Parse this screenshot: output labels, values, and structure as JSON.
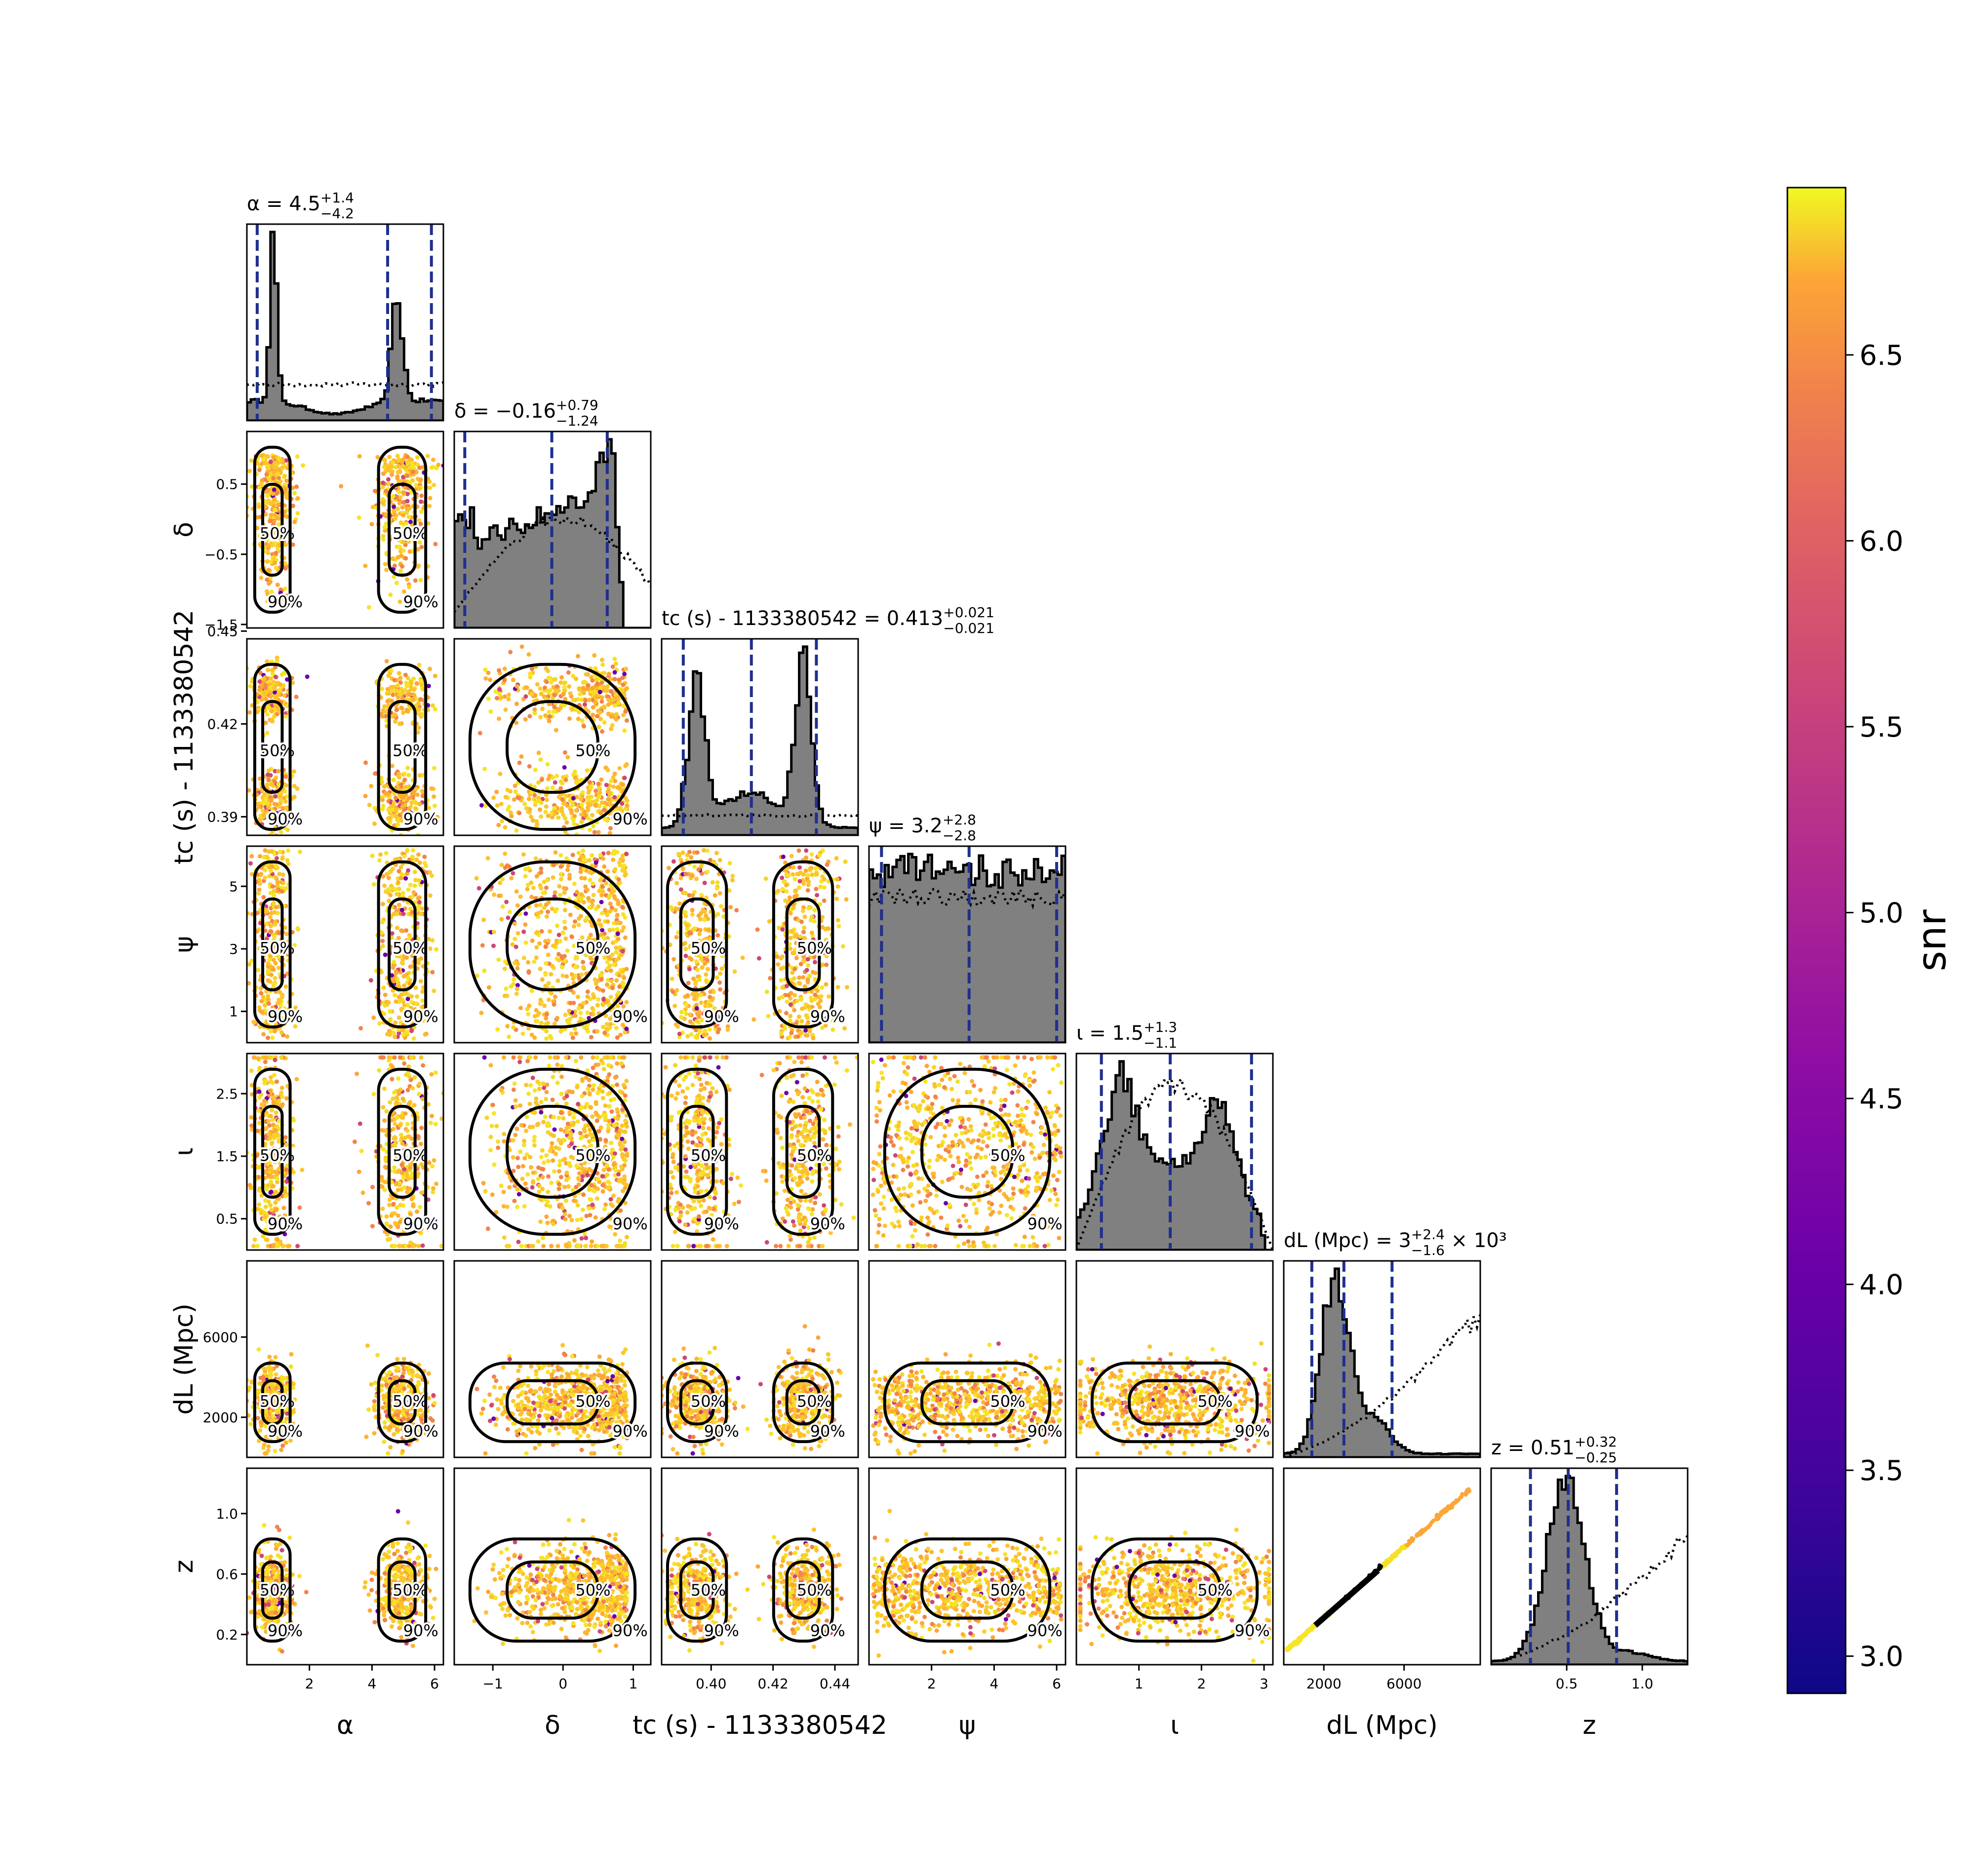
{
  "chart_data": {
    "type": "corner",
    "parameters": [
      {
        "key": "alpha",
        "label": "α",
        "lo": 0,
        "hi": 6.283,
        "ticks": [
          2,
          4,
          6
        ],
        "tick_labels": [
          "2",
          "4",
          "6"
        ],
        "title": "α = 4.5",
        "median": 4.5,
        "title_sup": "+1.4",
        "title_sub": "−4.2",
        "quantiles": [
          0.33,
          4.5,
          5.9
        ],
        "shape": "alpha"
      },
      {
        "key": "delta",
        "label": "δ",
        "lo": -1.55,
        "hi": 1.25,
        "ticks": [
          -1,
          0,
          1
        ],
        "tick_labels": [
          "−1",
          "0",
          "1"
        ],
        "title": "δ = −0.16",
        "median": -0.16,
        "title_sup": "+0.79",
        "title_sub": "−1.24",
        "quantiles": [
          -1.4,
          -0.16,
          0.63
        ],
        "shape": "delta"
      },
      {
        "key": "tc",
        "label": "tc (s) - 1133380542",
        "lo": 0.384,
        "hi": 0.4475,
        "ticks": [
          0.4,
          0.42,
          0.44
        ],
        "tick_labels": [
          "0.40",
          "0.42",
          "0.44"
        ],
        "title": "tc (s) - 1133380542 = 0.413",
        "median": 0.413,
        "title_sup": "+0.021",
        "title_sub": "−0.021",
        "quantiles": [
          0.391,
          0.413,
          0.434
        ],
        "shape": "tc"
      },
      {
        "key": "psi",
        "label": "ψ",
        "lo": 0,
        "hi": 6.283,
        "ticks": [
          2,
          4,
          6
        ],
        "tick_labels": [
          "2",
          "4",
          "6"
        ],
        "title": "ψ = 3.2",
        "median": 3.2,
        "title_sup": "+2.8",
        "title_sub": "−2.8",
        "quantiles": [
          0.4,
          3.2,
          6.0
        ],
        "shape": "psi"
      },
      {
        "key": "iota",
        "label": "ι",
        "lo": 0,
        "hi": 3.1416,
        "ticks": [
          1,
          2,
          3
        ],
        "tick_labels": [
          "1",
          "2",
          "3"
        ],
        "title": "ι = 1.5",
        "median": 1.5,
        "title_sup": "+1.3",
        "title_sub": "−1.1",
        "quantiles": [
          0.4,
          1.5,
          2.8
        ],
        "shape": "iota"
      },
      {
        "key": "dl",
        "label": "dL (Mpc)",
        "lo": 0,
        "hi": 9800,
        "ticks": [
          2000,
          6000
        ],
        "tick_labels": [
          "2000",
          "6000"
        ],
        "title": "dL (Mpc) = 3",
        "median": 3000,
        "title_sup": "+2.4",
        "title_sub": "−1.6",
        "title_suffix": " × 10³",
        "quantiles": [
          1400,
          3000,
          5400
        ],
        "shape": "dl"
      },
      {
        "key": "z",
        "label": "z",
        "lo": 0,
        "hi": 1.3,
        "ticks": [
          0.5,
          1.0
        ],
        "tick_labels": [
          "0.5",
          "1.0"
        ],
        "title": "z = 0.51",
        "median": 0.51,
        "title_sup": "+0.32",
        "title_sub": "−0.25",
        "quantiles": [
          0.26,
          0.51,
          0.83
        ],
        "shape": "z"
      }
    ],
    "row_ticks": {
      "delta": {
        "lo": -1.55,
        "hi": 1.25,
        "ticks": [
          0.5,
          -0.5,
          -1.5
        ],
        "tick_labels": [
          "0.5",
          "−0.5",
          "−1.5"
        ]
      },
      "tc": {
        "lo": 0.384,
        "hi": 0.4475,
        "ticks": [
          0.45,
          0.42,
          0.39
        ],
        "tick_labels": [
          "0.45",
          "0.42",
          "0.39"
        ]
      },
      "psi": {
        "lo": 0,
        "hi": 6.283,
        "ticks": [
          5,
          3,
          1
        ],
        "tick_labels": [
          "5",
          "3",
          "1"
        ]
      },
      "iota": {
        "lo": 0,
        "hi": 3.1416,
        "ticks": [
          2.5,
          1.5,
          0.5
        ],
        "tick_labels": [
          "2.5",
          "1.5",
          "0.5"
        ]
      },
      "dl": {
        "lo": 0,
        "hi": 9800,
        "ticks": [
          6000,
          2000
        ],
        "tick_labels": [
          "6000",
          "2000"
        ]
      },
      "z": {
        "lo": 0,
        "hi": 1.3,
        "ticks": [
          1.0,
          0.6,
          0.2
        ],
        "tick_labels": [
          "1.0",
          "0.6",
          "0.2"
        ]
      }
    },
    "contour_levels": [
      "50%",
      "90%"
    ],
    "hist_color": "#808080",
    "quantile_line_color": "#1f2f8f",
    "prior_line_style": "dotted",
    "colorbar": {
      "label": "snr",
      "colormap": "plasma",
      "min": 2.9,
      "max": 6.95,
      "ticks": [
        3.0,
        3.5,
        4.0,
        4.5,
        5.0,
        5.5,
        6.0,
        6.5
      ],
      "tick_labels": [
        "3.0",
        "3.5",
        "4.0",
        "4.5",
        "5.0",
        "5.5",
        "6.0",
        "6.5"
      ]
    }
  }
}
